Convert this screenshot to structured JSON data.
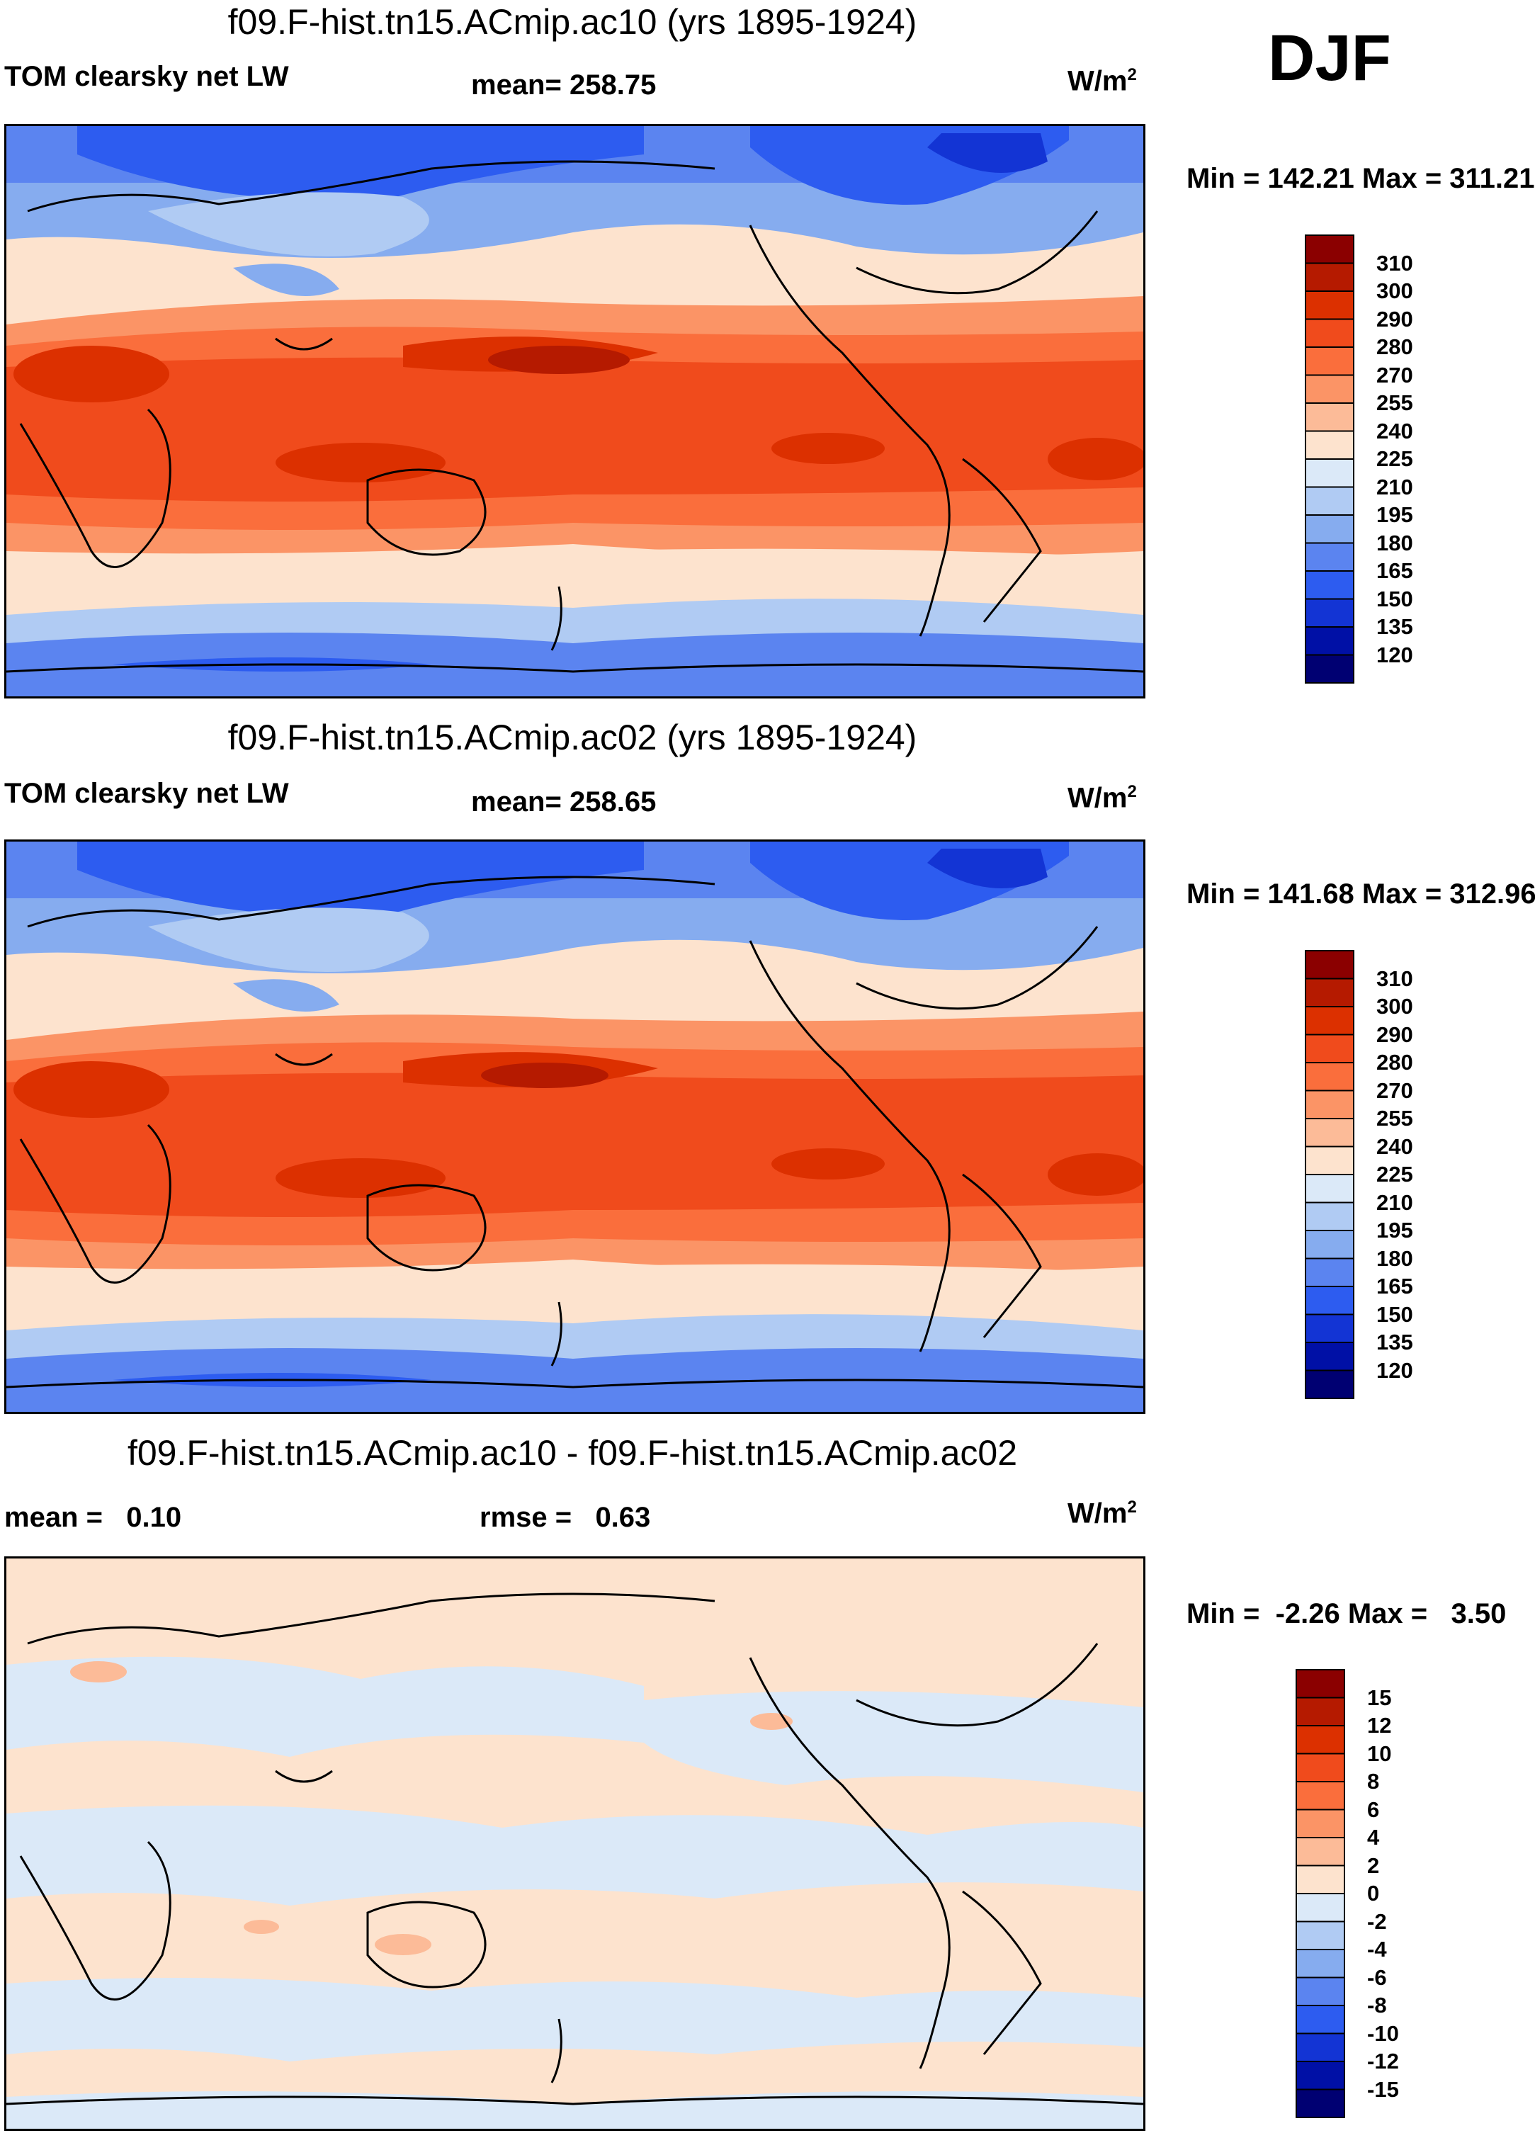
{
  "season": "DJF",
  "panels": [
    {
      "title": "f09.F-hist.tn15.ACmip.ac10 (yrs 1895-1924)",
      "variable": "TOM clearsky net LW",
      "stat_text": "mean= 258.75",
      "units": "W/m",
      "units_exp": "2",
      "minmax": "Min = 142.21 Max = 311.21",
      "colorbar": {
        "levels": [
          "310",
          "300",
          "290",
          "280",
          "270",
          "255",
          "240",
          "225",
          "210",
          "195",
          "180",
          "165",
          "150",
          "135",
          "120"
        ],
        "colors": [
          "#8b0000",
          "#b51a00",
          "#dc3000",
          "#f04b1c",
          "#fa6e3c",
          "#fb9466",
          "#fcbb98",
          "#fde3ce",
          "#dbe9f8",
          "#b0cbf3",
          "#86acef",
          "#5b84f0",
          "#2d5cf0",
          "#1334d4",
          "#0010a6",
          "#000072"
        ]
      }
    },
    {
      "title": "f09.F-hist.tn15.ACmip.ac02 (yrs 1895-1924)",
      "variable": "TOM clearsky net LW",
      "stat_text": "mean= 258.65",
      "units": "W/m",
      "units_exp": "2",
      "minmax": "Min = 141.68 Max = 312.96",
      "colorbar": {
        "levels": [
          "310",
          "300",
          "290",
          "280",
          "270",
          "255",
          "240",
          "225",
          "210",
          "195",
          "180",
          "165",
          "150",
          "135",
          "120"
        ],
        "colors": [
          "#8b0000",
          "#b51a00",
          "#dc3000",
          "#f04b1c",
          "#fa6e3c",
          "#fb9466",
          "#fcbb98",
          "#fde3ce",
          "#dbe9f8",
          "#b0cbf3",
          "#86acef",
          "#5b84f0",
          "#2d5cf0",
          "#1334d4",
          "#0010a6",
          "#000072"
        ]
      }
    },
    {
      "title": "f09.F-hist.tn15.ACmip.ac10 - f09.F-hist.tn15.ACmip.ac02",
      "stat_left": "mean =   0.10",
      "stat_text": "rmse =   0.63",
      "units": "W/m",
      "units_exp": "2",
      "minmax": "Min =  -2.26 Max =   3.50",
      "colorbar": {
        "levels": [
          "15",
          "12",
          "10",
          "8",
          "6",
          "4",
          "2",
          "0",
          "-2",
          "-4",
          "-6",
          "-8",
          "-10",
          "-12",
          "-15"
        ],
        "colors": [
          "#8b0000",
          "#b51a00",
          "#dc3000",
          "#f04b1c",
          "#fa6e3c",
          "#fb9466",
          "#fcbb98",
          "#fde3ce",
          "#dbe9f8",
          "#b0cbf3",
          "#86acef",
          "#5b84f0",
          "#2d5cf0",
          "#1334d4",
          "#0010a6",
          "#000072"
        ]
      }
    }
  ],
  "chart_data": {
    "type": "heatmap",
    "projection": "cylindrical equidistant, centered on Pacific (180)",
    "panels": [
      {
        "title": "f09.F-hist.tn15.ACmip.ac10 (yrs 1895-1924)",
        "field": "TOM clearsky net LW",
        "mean": 258.75,
        "min": 142.21,
        "max": 311.21,
        "units": "W/m2",
        "contour_levels": [
          120,
          135,
          150,
          165,
          180,
          195,
          210,
          225,
          240,
          255,
          270,
          280,
          290,
          300,
          310
        ]
      },
      {
        "title": "f09.F-hist.tn15.ACmip.ac02 (yrs 1895-1924)",
        "field": "TOM clearsky net LW",
        "mean": 258.65,
        "min": 141.68,
        "max": 312.96,
        "units": "W/m2",
        "contour_levels": [
          120,
          135,
          150,
          165,
          180,
          195,
          210,
          225,
          240,
          255,
          270,
          280,
          290,
          300,
          310
        ]
      },
      {
        "title": "f09.F-hist.tn15.ACmip.ac10 - f09.F-hist.tn15.ACmip.ac02",
        "field": "difference",
        "mean": 0.1,
        "rmse": 0.63,
        "min": -2.26,
        "max": 3.5,
        "units": "W/m2",
        "contour_levels": [
          -15,
          -12,
          -10,
          -8,
          -6,
          -4,
          -2,
          0,
          2,
          4,
          6,
          8,
          10,
          12,
          15
        ]
      }
    ]
  }
}
